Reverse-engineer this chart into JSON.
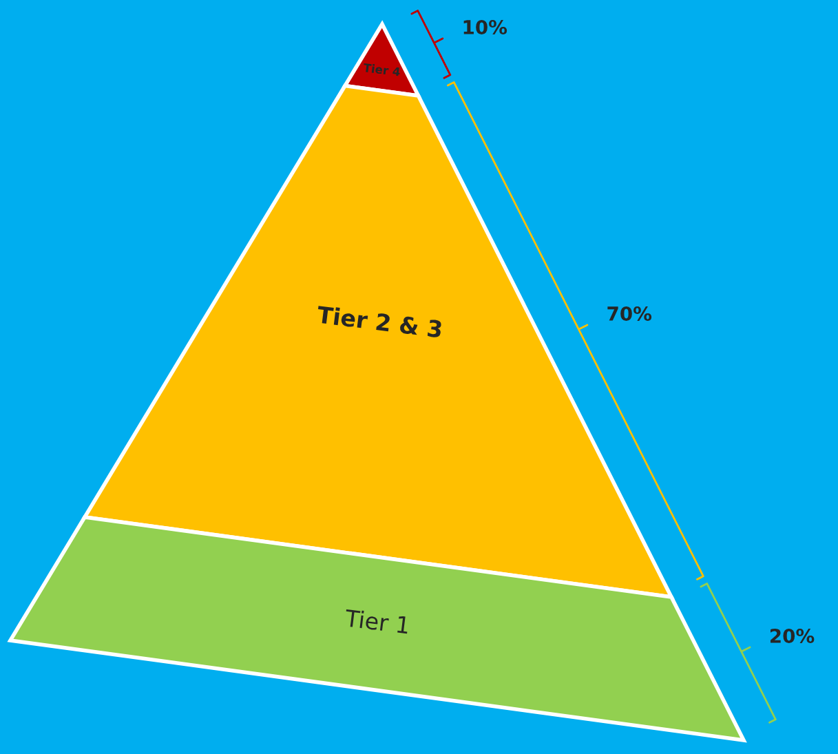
{
  "chart_data": {
    "type": "other",
    "categories": [
      "Tier 4",
      "Tier 2 & 3",
      "Tier 1"
    ],
    "values": [
      10,
      70,
      20
    ],
    "value_labels": [
      "10%",
      "70%",
      "20%"
    ],
    "colors": [
      "#c00000",
      "#ffc000",
      "#92d050"
    ]
  }
}
